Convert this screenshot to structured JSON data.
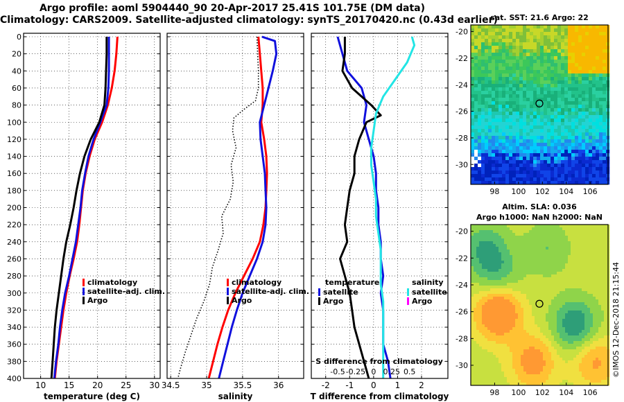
{
  "figure": {
    "title_line1": "Argo profile: aoml 5904440_90 20-Apr-2017 25.41S 101.75E (DM data)",
    "title_line2": "Climatology: CARS2009. Satellite-adjusted climatology: synTS_20170420.nc (0.43d earlier)",
    "credit": "©IMOS 12-Dec-2018 21:15:44"
  },
  "colors": {
    "climatology": "#ff0000",
    "satellite": "#1010dd",
    "argo": "#000000",
    "sal_satellite": "#22e5e5",
    "sal_argo": "#ff00ff"
  },
  "chart_data": [
    {
      "id": "temperature",
      "type": "line",
      "xlabel": "temperature (deg C)",
      "ylabel": "",
      "xlim": [
        7,
        31
      ],
      "xticks": [
        10,
        15,
        20,
        25,
        30
      ],
      "xtick_labels": [
        "10",
        "15",
        "20",
        "25",
        "30"
      ],
      "ylim": [
        400,
        0
      ],
      "yticks": [
        0,
        20,
        40,
        60,
        80,
        100,
        120,
        140,
        160,
        180,
        200,
        220,
        240,
        260,
        280,
        300,
        320,
        340,
        360,
        380,
        400
      ],
      "ytick_labels": [
        "0",
        "20",
        "40",
        "60",
        "80",
        "100",
        "120",
        "140",
        "160",
        "180",
        "200",
        "220",
        "240",
        "260",
        "280",
        "300",
        "320",
        "340",
        "360",
        "380",
        "400"
      ],
      "grid": true,
      "legend_position": "lower-middle",
      "series": [
        {
          "name": "climatology",
          "color": "#ff0000",
          "style": "solid",
          "points": [
            [
              23.5,
              0
            ],
            [
              23.3,
              20
            ],
            [
              23.0,
              40
            ],
            [
              22.5,
              60
            ],
            [
              21.8,
              80
            ],
            [
              20.8,
              100
            ],
            [
              19.5,
              120
            ],
            [
              18.6,
              140
            ],
            [
              17.9,
              160
            ],
            [
              17.4,
              180
            ],
            [
              17.1,
              200
            ],
            [
              16.8,
              220
            ],
            [
              16.4,
              240
            ],
            [
              15.8,
              260
            ],
            [
              15.1,
              280
            ],
            [
              14.5,
              300
            ],
            [
              14.0,
              320
            ],
            [
              13.6,
              340
            ],
            [
              13.2,
              360
            ],
            [
              12.8,
              380
            ],
            [
              12.5,
              400
            ]
          ]
        },
        {
          "name": "satellite-adj. clim.",
          "color": "#1010dd",
          "style": "solid",
          "points": [
            [
              22.0,
              0
            ],
            [
              22.0,
              20
            ],
            [
              22.0,
              40
            ],
            [
              21.9,
              60
            ],
            [
              21.6,
              80
            ],
            [
              20.5,
              100
            ],
            [
              19.3,
              120
            ],
            [
              18.4,
              140
            ],
            [
              17.8,
              160
            ],
            [
              17.3,
              180
            ],
            [
              17.0,
              200
            ],
            [
              16.6,
              220
            ],
            [
              16.2,
              240
            ],
            [
              15.6,
              260
            ],
            [
              15.0,
              280
            ],
            [
              14.3,
              300
            ],
            [
              13.8,
              320
            ],
            [
              13.4,
              340
            ],
            [
              13.1,
              360
            ],
            [
              12.7,
              380
            ],
            [
              12.4,
              400
            ]
          ]
        },
        {
          "name": "Argo",
          "color": "#000000",
          "style": "solid",
          "points": [
            [
              21.6,
              0
            ],
            [
              21.6,
              20
            ],
            [
              21.5,
              40
            ],
            [
              21.4,
              60
            ],
            [
              21.2,
              80
            ],
            [
              20.3,
              100
            ],
            [
              18.8,
              120
            ],
            [
              17.7,
              140
            ],
            [
              16.9,
              160
            ],
            [
              16.3,
              180
            ],
            [
              15.8,
              200
            ],
            [
              15.2,
              220
            ],
            [
              14.5,
              240
            ],
            [
              14.0,
              260
            ],
            [
              13.6,
              280
            ],
            [
              13.2,
              300
            ],
            [
              12.8,
              320
            ],
            [
              12.5,
              340
            ],
            [
              12.3,
              360
            ],
            [
              12.1,
              380
            ],
            [
              11.9,
              400
            ]
          ]
        }
      ]
    },
    {
      "id": "salinity",
      "type": "line",
      "xlabel": "salinity",
      "ylabel": "",
      "xlim": [
        34.45,
        36.35
      ],
      "xticks": [
        34.5,
        35,
        35.5,
        36
      ],
      "xtick_labels": [
        "34.5",
        "35",
        "35.5",
        "36"
      ],
      "ylim": [
        400,
        0
      ],
      "grid": true,
      "legend_position": "lower-middle",
      "series": [
        {
          "name": "climatology",
          "color": "#ff0000",
          "style": "solid",
          "points": [
            [
              35.72,
              0
            ],
            [
              35.74,
              20
            ],
            [
              35.76,
              40
            ],
            [
              35.78,
              60
            ],
            [
              35.78,
              80
            ],
            [
              35.76,
              100
            ],
            [
              35.8,
              120
            ],
            [
              35.83,
              140
            ],
            [
              35.84,
              160
            ],
            [
              35.83,
              180
            ],
            [
              35.82,
              200
            ],
            [
              35.79,
              220
            ],
            [
              35.74,
              240
            ],
            [
              35.64,
              260
            ],
            [
              35.52,
              280
            ],
            [
              35.4,
              300
            ],
            [
              35.3,
              320
            ],
            [
              35.22,
              340
            ],
            [
              35.15,
              360
            ],
            [
              35.09,
              380
            ],
            [
              35.03,
              400
            ]
          ]
        },
        {
          "name": "satellite-adj. clim.",
          "color": "#1010dd",
          "style": "solid",
          "points": [
            [
              35.77,
              0
            ],
            [
              35.95,
              5
            ],
            [
              35.97,
              20
            ],
            [
              35.92,
              40
            ],
            [
              35.86,
              60
            ],
            [
              35.8,
              80
            ],
            [
              35.74,
              100
            ],
            [
              35.75,
              120
            ],
            [
              35.78,
              140
            ],
            [
              35.81,
              160
            ],
            [
              35.82,
              180
            ],
            [
              35.83,
              200
            ],
            [
              35.82,
              220
            ],
            [
              35.78,
              240
            ],
            [
              35.7,
              260
            ],
            [
              35.6,
              280
            ],
            [
              35.5,
              300
            ],
            [
              35.42,
              320
            ],
            [
              35.35,
              340
            ],
            [
              35.29,
              360
            ],
            [
              35.23,
              380
            ],
            [
              35.17,
              400
            ]
          ]
        },
        {
          "name": "Argo",
          "color": "#000000",
          "style": "dotted",
          "points": [
            [
              35.7,
              0
            ],
            [
              35.71,
              20
            ],
            [
              35.72,
              40
            ],
            [
              35.72,
              60
            ],
            [
              35.68,
              75
            ],
            [
              35.52,
              85
            ],
            [
              35.38,
              95
            ],
            [
              35.36,
              110
            ],
            [
              35.41,
              130
            ],
            [
              35.34,
              150
            ],
            [
              35.37,
              170
            ],
            [
              35.33,
              190
            ],
            [
              35.21,
              210
            ],
            [
              35.23,
              230
            ],
            [
              35.16,
              250
            ],
            [
              35.08,
              270
            ],
            [
              35.04,
              290
            ],
            [
              34.96,
              310
            ],
            [
              34.86,
              330
            ],
            [
              34.78,
              350
            ],
            [
              34.7,
              370
            ],
            [
              34.63,
              390
            ],
            [
              34.6,
              400
            ]
          ]
        }
      ]
    },
    {
      "id": "difference",
      "type": "line",
      "xlabel": "T difference from climatology",
      "xlabel_top": "S difference from climatology",
      "ylabel": "",
      "xlim": [
        -2.6,
        3.1
      ],
      "xticks": [
        -2,
        -1,
        0,
        1,
        2
      ],
      "xtick_labels": [
        "-2",
        "-1",
        "0",
        "1",
        "2"
      ],
      "top_xtick_labels": [
        "-0.5",
        "-0.25",
        "0",
        "0.25",
        "0.5"
      ],
      "ylim": [
        400,
        0
      ],
      "grid": true,
      "legend_left_title": "temperature",
      "legend_right_title": "salinity",
      "legend_position": "lower-middle",
      "series": [
        {
          "name": "satellite",
          "group": "temperature",
          "color": "#1010dd",
          "style": "solid",
          "points": [
            [
              -1.5,
              0
            ],
            [
              -1.3,
              20
            ],
            [
              -1.1,
              40
            ],
            [
              -0.5,
              60
            ],
            [
              -0.3,
              80
            ],
            [
              -0.4,
              100
            ],
            [
              -0.2,
              120
            ],
            [
              0.0,
              140
            ],
            [
              0.1,
              160
            ],
            [
              0.1,
              180
            ],
            [
              0.2,
              200
            ],
            [
              0.2,
              220
            ],
            [
              0.3,
              240
            ],
            [
              0.3,
              260
            ],
            [
              0.4,
              280
            ],
            [
              0.3,
              300
            ],
            [
              0.4,
              320
            ],
            [
              0.4,
              340
            ],
            [
              0.4,
              360
            ],
            [
              0.6,
              380
            ],
            [
              0.7,
              400
            ]
          ]
        },
        {
          "name": "Argo",
          "group": "temperature",
          "color": "#000000",
          "style": "solid",
          "points": [
            [
              -1.2,
              0
            ],
            [
              -1.2,
              20
            ],
            [
              -1.3,
              40
            ],
            [
              -0.9,
              60
            ],
            [
              -0.1,
              80
            ],
            [
              0.3,
              92
            ],
            [
              -0.3,
              100
            ],
            [
              -0.6,
              120
            ],
            [
              -0.8,
              140
            ],
            [
              -0.8,
              160
            ],
            [
              -1.0,
              180
            ],
            [
              -1.1,
              200
            ],
            [
              -1.2,
              220
            ],
            [
              -1.1,
              240
            ],
            [
              -1.4,
              260
            ],
            [
              -1.2,
              280
            ],
            [
              -1.0,
              300
            ],
            [
              -0.9,
              320
            ],
            [
              -0.8,
              340
            ],
            [
              -0.6,
              360
            ],
            [
              -0.4,
              380
            ],
            [
              -0.2,
              400
            ]
          ]
        },
        {
          "name": "satellite",
          "group": "salinity",
          "color": "#22e5e5",
          "style": "solid",
          "points": [
            [
              1.6,
              0
            ],
            [
              1.7,
              10
            ],
            [
              1.4,
              30
            ],
            [
              0.9,
              50
            ],
            [
              0.4,
              70
            ],
            [
              0.1,
              90
            ],
            [
              0.0,
              110
            ],
            [
              -0.1,
              130
            ],
            [
              -0.1,
              150
            ],
            [
              0.0,
              170
            ],
            [
              0.1,
              190
            ],
            [
              0.1,
              210
            ],
            [
              0.2,
              230
            ],
            [
              0.3,
              250
            ],
            [
              0.3,
              270
            ],
            [
              0.3,
              290
            ],
            [
              0.4,
              310
            ],
            [
              0.4,
              330
            ],
            [
              0.4,
              350
            ],
            [
              0.4,
              370
            ],
            [
              0.4,
              390
            ],
            [
              0.4,
              400
            ]
          ]
        },
        {
          "name": "Argo",
          "group": "salinity",
          "color": "#ff00ff",
          "style": "solid",
          "points": []
        }
      ]
    },
    {
      "id": "sst_map",
      "type": "heatmap",
      "title": "sat. SST: 21.6 Argo: 22",
      "xlim": [
        96,
        107.5
      ],
      "ylim": [
        -31.5,
        -19.5
      ],
      "xticks": [
        98,
        100,
        102,
        104,
        106
      ],
      "xtick_labels": [
        "98",
        "100",
        "102",
        "104",
        "106"
      ],
      "yticks": [
        -20,
        -22,
        -24,
        -26,
        -28,
        -30
      ],
      "ytick_labels": [
        "-20",
        "-22",
        "-24",
        "-26",
        "-28",
        "-30"
      ],
      "marker": {
        "lon": 101.75,
        "lat": -25.41
      },
      "description_bands": [
        "orange north-east",
        "yellow-green north",
        "green centre",
        "cyan south",
        "blue far south"
      ]
    },
    {
      "id": "sla_map",
      "type": "heatmap",
      "title": "Altim. SLA: 0.036",
      "subtitle": "Argo h1000: NaN h2000: NaN",
      "xlim": [
        96,
        107.5
      ],
      "ylim": [
        -31.5,
        -19.5
      ],
      "xticks": [
        98,
        100,
        102,
        104,
        106
      ],
      "xtick_labels": [
        "98",
        "100",
        "102",
        "104",
        "106"
      ],
      "yticks": [
        -20,
        -22,
        -24,
        -26,
        -28,
        -30
      ],
      "ytick_labels": [
        "-20",
        "-22",
        "-24",
        "-26",
        "-28",
        "-30"
      ],
      "marker": {
        "lon": 101.75,
        "lat": -25.41
      }
    }
  ],
  "legends": {
    "temperature_panel": [
      "climatology",
      "satellite-adj. clim.",
      "Argo"
    ],
    "salinity_panel": [
      "climatology",
      "satellite-adj. clim.",
      "Argo"
    ],
    "difference_panel_left": [
      "satellite",
      "Argo"
    ],
    "difference_panel_right": [
      "satellite",
      "Argo"
    ]
  }
}
